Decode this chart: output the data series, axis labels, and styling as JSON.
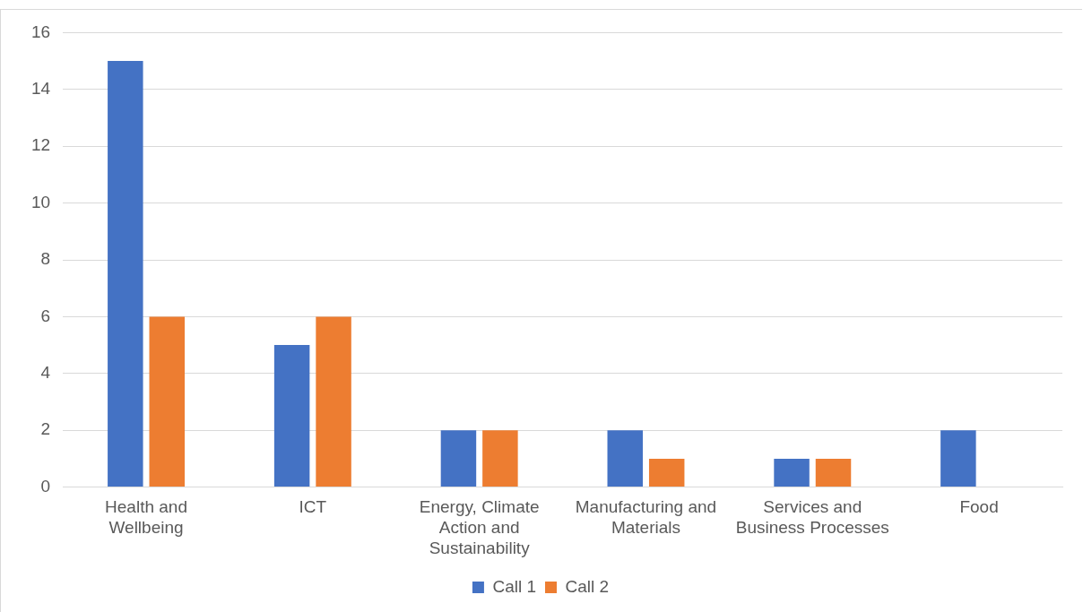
{
  "chart_data": {
    "type": "bar",
    "categories": [
      "Health and Wellbeing",
      "ICT",
      "Energy, Climate Action and Sustainability",
      "Manufacturing and Materials",
      "Services and Business Processes",
      "Food"
    ],
    "series": [
      {
        "name": "Call 1",
        "color": "#4472c4",
        "values": [
          15,
          5,
          2,
          2,
          1,
          2
        ]
      },
      {
        "name": "Call 2",
        "color": "#ed7d31",
        "values": [
          6,
          6,
          2,
          1,
          1,
          0
        ]
      }
    ],
    "ylim": [
      0,
      16
    ],
    "yticks": [
      0,
      2,
      4,
      6,
      8,
      10,
      12,
      14,
      16
    ],
    "grid": "y",
    "legend": "bottom"
  }
}
